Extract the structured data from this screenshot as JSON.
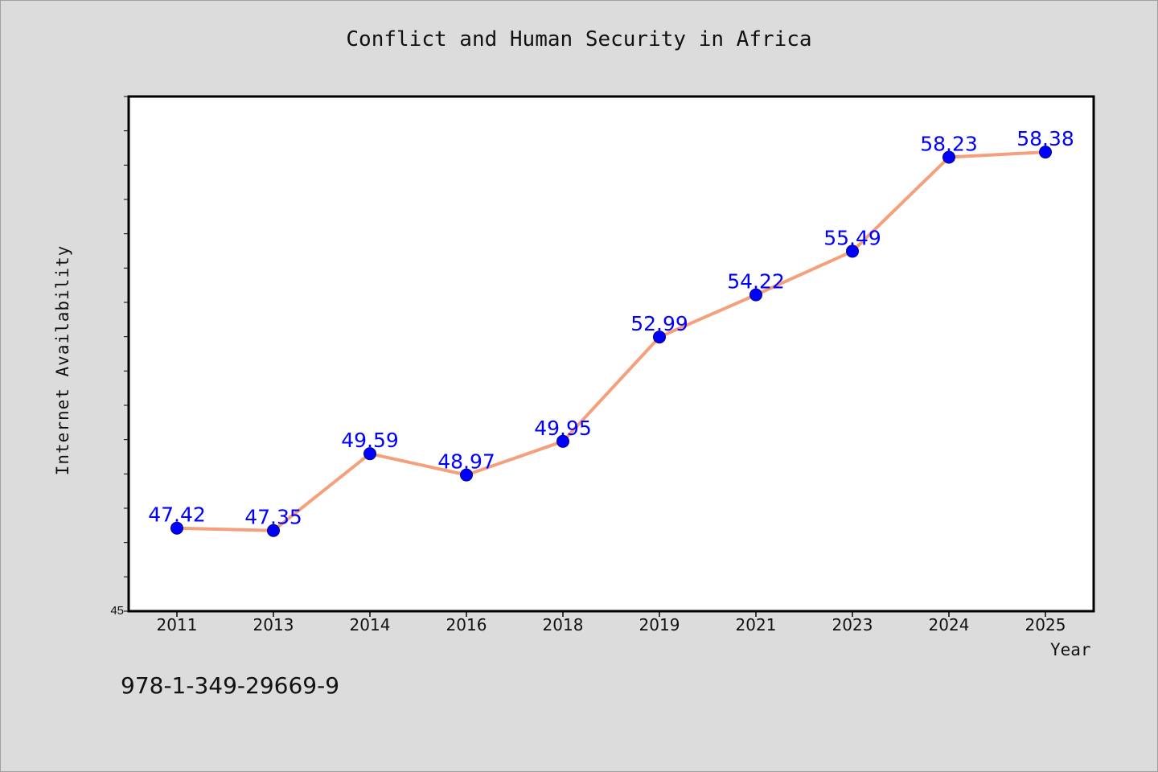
{
  "chart_data": {
    "type": "line",
    "title": "Conflict and Human Security in Africa",
    "xlabel": "Year",
    "ylabel": "Internet Availability",
    "categories": [
      "2011",
      "2013",
      "2014",
      "2016",
      "2018",
      "2019",
      "2021",
      "2023",
      "2024",
      "2025"
    ],
    "series": [
      {
        "values": [
          47.42,
          47.35,
          49.59,
          48.97,
          49.95,
          52.99,
          54.22,
          55.49,
          58.23,
          58.38
        ],
        "labels": [
          "47.42",
          "47.35",
          "49.59",
          "48.97",
          "49.95",
          "52.99",
          "54.22",
          "55.49",
          "58.23",
          "58.38"
        ]
      }
    ],
    "ylim": [
      45,
      60
    ],
    "y_tick_labels": [
      "45"
    ],
    "grid": false,
    "colors": {
      "line": "#f4a07c",
      "marker": "#0000ff",
      "data_label": "#0000ff"
    }
  },
  "footer": {
    "code": "978-1-349-29669-9"
  }
}
